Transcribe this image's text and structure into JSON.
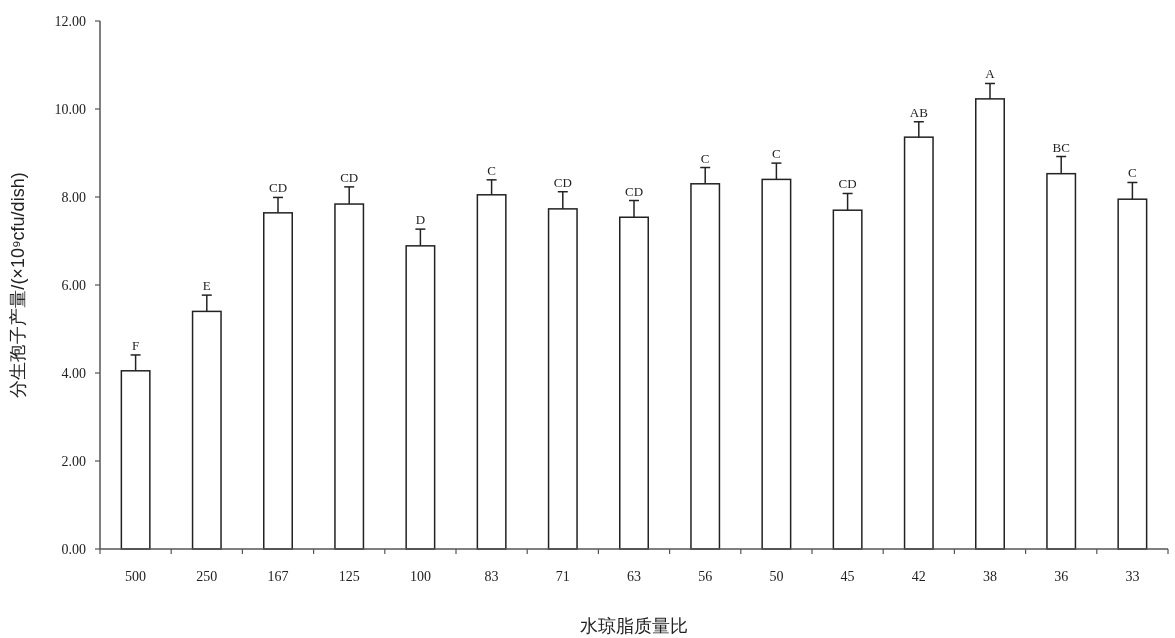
{
  "chart_data": {
    "type": "bar",
    "xlabel": "水琼脂质量比",
    "ylabel": "分生孢子产量/(×10⁹cfu/dish)",
    "categories": [
      "500",
      "250",
      "167",
      "125",
      "100",
      "83",
      "71",
      "63",
      "56",
      "50",
      "45",
      "42",
      "38",
      "36",
      "33"
    ],
    "values": [
      4.05,
      5.4,
      7.64,
      7.84,
      6.89,
      8.05,
      7.73,
      7.54,
      8.3,
      8.4,
      7.7,
      9.36,
      10.23,
      8.53,
      7.95
    ],
    "errors": [
      0.36,
      0.37,
      0.35,
      0.39,
      0.38,
      0.34,
      0.39,
      0.38,
      0.37,
      0.37,
      0.38,
      0.35,
      0.35,
      0.39,
      0.38
    ],
    "color": "#ffffff",
    "ylim": [
      0,
      12
    ],
    "yticks": [
      {
        "value": 0,
        "label": "0.00"
      },
      {
        "value": 2,
        "label": "2.00"
      },
      {
        "value": 4,
        "label": "4.00"
      },
      {
        "value": 6,
        "label": "6.00"
      },
      {
        "value": 8,
        "label": "8.00"
      },
      {
        "value": 10,
        "label": "10.00"
      },
      {
        "value": 12,
        "label": "12.00"
      }
    ],
    "grid": false,
    "annotations": [
      {
        "text": "F",
        "x": "500",
        "y": 4.41
      },
      {
        "text": "E",
        "x": "250",
        "y": 5.77
      },
      {
        "text": "CD",
        "x": "167",
        "y": 7.99
      },
      {
        "text": "CD",
        "x": "125",
        "y": 8.23
      },
      {
        "text": "D",
        "x": "100",
        "y": 7.27
      },
      {
        "text": "C",
        "x": "83",
        "y": 8.39
      },
      {
        "text": "CD",
        "x": "71",
        "y": 8.12
      },
      {
        "text": "CD",
        "x": "63",
        "y": 7.92
      },
      {
        "text": "C",
        "x": "56",
        "y": 8.67
      },
      {
        "text": "C",
        "x": "50",
        "y": 8.77
      },
      {
        "text": "CD",
        "x": "45",
        "y": 8.08
      },
      {
        "text": "AB",
        "x": "42",
        "y": 9.71
      },
      {
        "text": "A",
        "x": "38",
        "y": 10.58
      },
      {
        "text": "BC",
        "x": "36",
        "y": 8.92
      },
      {
        "text": "C",
        "x": "33",
        "y": 8.33
      }
    ]
  }
}
